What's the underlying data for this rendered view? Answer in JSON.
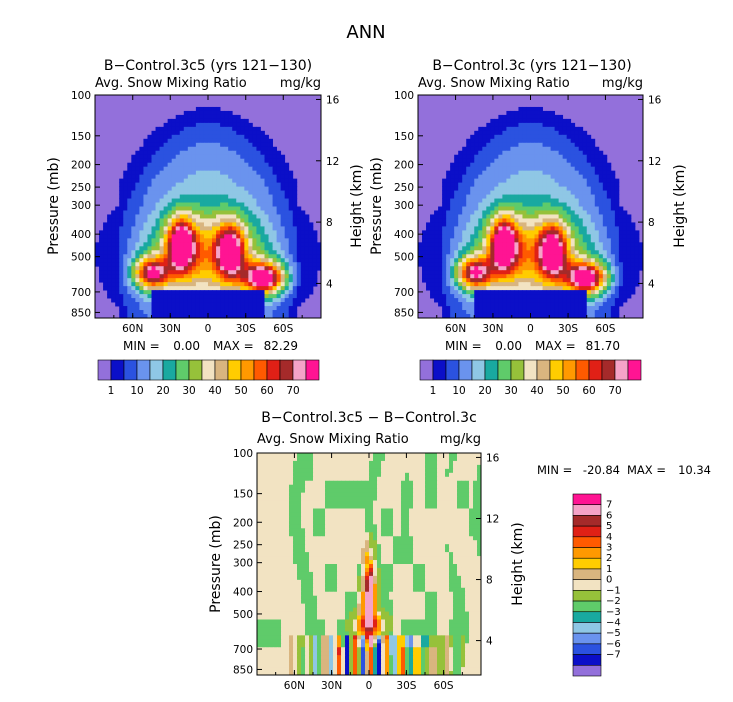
{
  "figure_title": "ANN",
  "colors": {
    "bg": "#9370db",
    "fill_palette": [
      "#9370db",
      "#0b0fc8",
      "#2b52e0",
      "#6a93ee",
      "#8fc7e5",
      "#19a9a0",
      "#5fcb6a",
      "#96c13a",
      "#f2e3c2",
      "#d9b57f",
      "#ffcc00",
      "#ff9900",
      "#ff5a00",
      "#e02016",
      "#a52a2a",
      "#f5a3c8",
      "#ff1493"
    ],
    "diff_palette": [
      "#9370db",
      "#0b0fc8",
      "#2b52e0",
      "#6a93ee",
      "#8fc7e5",
      "#19a9a0",
      "#5fcb6a",
      "#96c13a",
      "#f2e3c2",
      "#d9b57f",
      "#ffcc00",
      "#ff9900",
      "#ff5a00",
      "#e02016",
      "#a52a2a",
      "#f5a3c8",
      "#ff1493"
    ]
  },
  "chart_data": [
    {
      "type": "heatmap",
      "title": "B−Control.3c5 (yrs 121−130)",
      "subtitle_left": "Avg. Snow Mixing Ratio",
      "subtitle_right": "mg/kg",
      "ylabel": "Pressure (mb)",
      "ylabel_right": "Height (km)",
      "y_ticks": [
        "100",
        "150",
        "200",
        "250",
        "300",
        "400",
        "500",
        "700",
        "850"
      ],
      "y_right_ticks": [
        "16",
        "12",
        "8",
        "4"
      ],
      "x_ticks": [
        "60N",
        "30N",
        "0",
        "30S",
        "60S"
      ],
      "min_text": "MIN =",
      "min_value": "0.00",
      "max_text": "MAX =",
      "max_value": "82.29",
      "levels": [
        1,
        5,
        10,
        15,
        20,
        25,
        30,
        35,
        40,
        45,
        50,
        55,
        60,
        65,
        70,
        75
      ],
      "colorbar_labels": [
        "1",
        "10",
        "20",
        "30",
        "40",
        "50",
        "60",
        "70"
      ],
      "peak": 82.29
    },
    {
      "type": "heatmap",
      "title": "B−Control.3c (yrs 121−130)",
      "subtitle_left": "Avg. Snow Mixing Ratio",
      "subtitle_right": "mg/kg",
      "ylabel": "Pressure (mb)",
      "ylabel_right": "Height (km)",
      "y_ticks": [
        "100",
        "150",
        "200",
        "250",
        "300",
        "400",
        "500",
        "700",
        "850"
      ],
      "y_right_ticks": [
        "16",
        "12",
        "8",
        "4"
      ],
      "x_ticks": [
        "60N",
        "30N",
        "0",
        "30S",
        "60S"
      ],
      "min_text": "MIN =",
      "min_value": "0.00",
      "max_text": "MAX =",
      "max_value": "81.70",
      "levels": [
        1,
        5,
        10,
        15,
        20,
        25,
        30,
        35,
        40,
        45,
        50,
        55,
        60,
        65,
        70,
        75
      ],
      "colorbar_labels": [
        "1",
        "10",
        "20",
        "30",
        "40",
        "50",
        "60",
        "70"
      ],
      "peak": 81.7
    },
    {
      "type": "heatmap",
      "title": "B−Control.3c5 − B−Control.3c",
      "subtitle_left": "Avg. Snow Mixing Ratio",
      "subtitle_right": "mg/kg",
      "ylabel": "Pressure (mb)",
      "ylabel_right": "Height (km)",
      "y_ticks": [
        "100",
        "150",
        "200",
        "250",
        "300",
        "400",
        "500",
        "700",
        "850"
      ],
      "y_right_ticks": [
        "16",
        "12",
        "8",
        "4"
      ],
      "x_ticks": [
        "60N",
        "30N",
        "0",
        "30S",
        "60S"
      ],
      "min_text": "MIN =",
      "min_value": "-20.84",
      "max_text": "MAX =",
      "max_value": "10.34",
      "levels": [
        -7,
        -6,
        -5,
        -4,
        -3,
        -2,
        -1,
        0,
        1,
        2,
        3,
        4,
        5,
        6,
        7
      ],
      "colorbar_labels": [
        "7",
        "6",
        "5",
        "4",
        "3",
        "2",
        "1",
        "0",
        "−1",
        "−2",
        "−3",
        "−4",
        "−5",
        "−6",
        "−7"
      ]
    }
  ]
}
